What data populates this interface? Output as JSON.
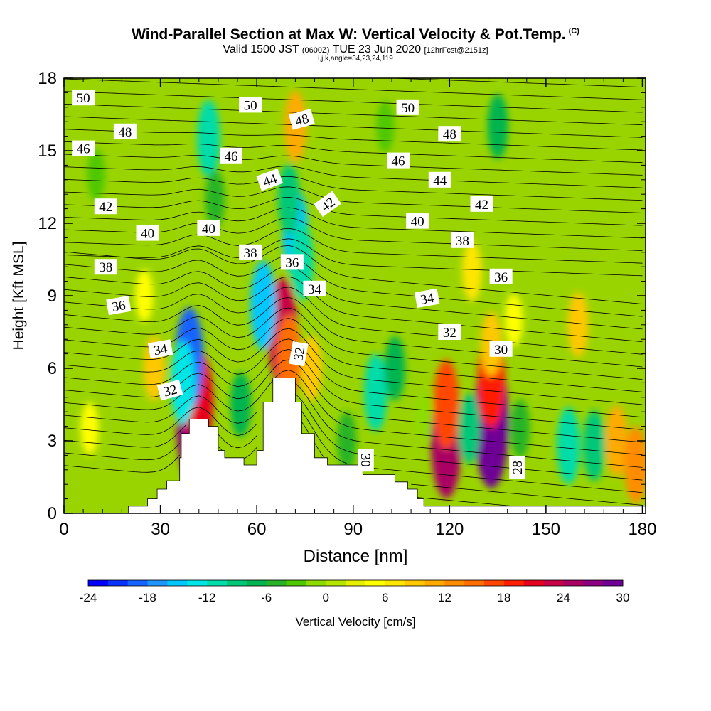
{
  "title": {
    "main": "Wind-Parallel Section at Max W: Vertical Velocity & Pot.Temp.",
    "copyright": "(C)",
    "valid_prefix": "Valid 1500 JST",
    "valid_utc": "(0600Z)",
    "valid_date": "TUE 23 Jun 2020",
    "forecast": "[12hrFcst@2151z]",
    "indices": "i,j,k,angle=34,23,24,119"
  },
  "chart_data": {
    "type": "heatmap",
    "xlabel": "Distance [nm]",
    "ylabel": "Height [Kft MSL]",
    "xlim": [
      0,
      181
    ],
    "ylim": [
      0,
      18
    ],
    "x_ticks": [
      "0",
      "30",
      "60",
      "90",
      "120",
      "150",
      "180"
    ],
    "y_ticks": [
      "0",
      "3",
      "6",
      "9",
      "12",
      "15",
      "18"
    ],
    "colorbar": {
      "label": "Vertical Velocity [cm/s]",
      "min": -24,
      "max": 30,
      "step": 2,
      "tick_labels": [
        "-24",
        "-18",
        "-12",
        "-6",
        "0",
        "6",
        "12",
        "18",
        "24",
        "30"
      ],
      "colors": [
        "#0000ff",
        "#0a32ff",
        "#1464ff",
        "#1e96ff",
        "#00c8ff",
        "#00e6e6",
        "#00dcaa",
        "#00c878",
        "#00b450",
        "#28b428",
        "#50c800",
        "#8cdc00",
        "#b4e600",
        "#e6f000",
        "#ffff00",
        "#ffe600",
        "#ffc800",
        "#ffaa00",
        "#ff8c00",
        "#ff6e00",
        "#ff4600",
        "#ff1e00",
        "#e6001e",
        "#c80046",
        "#aa0064",
        "#8c0082",
        "#6e0096"
      ]
    },
    "vertical_velocity_cells": [
      {
        "x": 40,
        "y": 3.8,
        "value": 26
      },
      {
        "x": 42,
        "y": 4.6,
        "value": 20
      },
      {
        "x": 39,
        "y": 6.4,
        "value": -20
      },
      {
        "x": 37,
        "y": 5.4,
        "value": -14
      },
      {
        "x": 68,
        "y": 7.5,
        "value": 22
      },
      {
        "x": 70,
        "y": 6.5,
        "value": 14
      },
      {
        "x": 62,
        "y": 8.6,
        "value": -16
      },
      {
        "x": 72,
        "y": 11.6,
        "value": -16
      },
      {
        "x": 74,
        "y": 10.4,
        "value": -12
      },
      {
        "x": 70,
        "y": 13.0,
        "value": -10
      },
      {
        "x": 72,
        "y": 16.0,
        "value": 10
      },
      {
        "x": 45,
        "y": 15.5,
        "value": -12
      },
      {
        "x": 47,
        "y": 13.0,
        "value": -6
      },
      {
        "x": 77,
        "y": 6.0,
        "value": 8
      },
      {
        "x": 97,
        "y": 5.0,
        "value": -12
      },
      {
        "x": 103,
        "y": 6.0,
        "value": -8
      },
      {
        "x": 119,
        "y": 3.0,
        "value": 24
      },
      {
        "x": 119,
        "y": 4.5,
        "value": 16
      },
      {
        "x": 133,
        "y": 3.8,
        "value": 30
      },
      {
        "x": 133,
        "y": 5.5,
        "value": 18
      },
      {
        "x": 126,
        "y": 3.5,
        "value": -10
      },
      {
        "x": 142,
        "y": 3.5,
        "value": -6
      },
      {
        "x": 157,
        "y": 2.8,
        "value": -12
      },
      {
        "x": 165,
        "y": 2.8,
        "value": -10
      },
      {
        "x": 172,
        "y": 3.0,
        "value": 10
      },
      {
        "x": 178,
        "y": 2.0,
        "value": 12
      },
      {
        "x": 160,
        "y": 7.8,
        "value": 8
      },
      {
        "x": 133,
        "y": 7.0,
        "value": 8
      },
      {
        "x": 28,
        "y": 6.0,
        "value": 8
      },
      {
        "x": 25,
        "y": 9.0,
        "value": 4
      },
      {
        "x": 8,
        "y": 3.5,
        "value": 4
      },
      {
        "x": 55,
        "y": 4.5,
        "value": -8
      },
      {
        "x": 88,
        "y": 3.0,
        "value": -6
      },
      {
        "x": 112,
        "y": 4.0,
        "value": -2
      },
      {
        "x": 127,
        "y": 10.0,
        "value": 6
      },
      {
        "x": 140,
        "y": 8.0,
        "value": 4
      },
      {
        "x": 100,
        "y": 16.0,
        "value": -4
      },
      {
        "x": 135,
        "y": 16.0,
        "value": -8
      },
      {
        "x": 10,
        "y": 14.0,
        "value": -4
      }
    ],
    "terrain_profile": {
      "x": [
        0,
        19,
        20,
        26,
        29,
        32,
        33,
        36,
        36.5,
        39,
        42,
        45,
        48,
        50,
        53,
        56,
        58,
        60,
        62,
        64,
        65,
        67,
        70,
        72,
        74,
        76,
        78,
        80,
        82,
        84,
        87,
        90,
        93,
        94,
        96,
        100,
        103,
        105,
        107,
        110,
        112,
        115,
        119,
        120,
        125,
        150,
        181
      ],
      "y": [
        0,
        0,
        0.3,
        0.6,
        1.0,
        1.35,
        1.35,
        2.3,
        3.3,
        3.9,
        3.9,
        3.6,
        2.6,
        2.3,
        2.3,
        2.0,
        2.0,
        2.6,
        4.6,
        4.6,
        5.6,
        5.6,
        5.6,
        4.6,
        3.3,
        3.3,
        2.3,
        2.3,
        2.0,
        2.0,
        2.0,
        2.0,
        1.6,
        1.6,
        1.6,
        1.6,
        1.3,
        1.3,
        1.0,
        0.6,
        0.3,
        0.3,
        0.3,
        0.3,
        0.3,
        0.3,
        0.3
      ]
    },
    "potential_temperature_labels": [
      {
        "text": "50",
        "x": 6,
        "y": 17.2,
        "angle": 0
      },
      {
        "text": "48",
        "x": 19,
        "y": 15.8,
        "angle": 0
      },
      {
        "text": "46",
        "x": 6,
        "y": 15.1,
        "angle": 0
      },
      {
        "text": "42",
        "x": 13,
        "y": 12.7,
        "angle": 0
      },
      {
        "text": "40",
        "x": 26,
        "y": 11.6,
        "angle": 0
      },
      {
        "text": "38",
        "x": 13,
        "y": 10.2,
        "angle": 0
      },
      {
        "text": "36",
        "x": 17,
        "y": 8.6,
        "angle": -10
      },
      {
        "text": "34",
        "x": 30,
        "y": 6.8,
        "angle": -10
      },
      {
        "text": "32",
        "x": 33,
        "y": 5.1,
        "angle": -15
      },
      {
        "text": "50",
        "x": 58,
        "y": 16.9,
        "angle": 0
      },
      {
        "text": "46",
        "x": 52,
        "y": 14.8,
        "angle": 0
      },
      {
        "text": "40",
        "x": 45,
        "y": 11.8,
        "angle": 0
      },
      {
        "text": "44",
        "x": 64,
        "y": 13.8,
        "angle": -20
      },
      {
        "text": "48",
        "x": 74,
        "y": 16.3,
        "angle": -15
      },
      {
        "text": "42",
        "x": 82,
        "y": 12.8,
        "angle": -35
      },
      {
        "text": "38",
        "x": 58,
        "y": 10.8,
        "angle": 0
      },
      {
        "text": "36",
        "x": 71,
        "y": 10.4,
        "angle": 0
      },
      {
        "text": "34",
        "x": 78,
        "y": 9.3,
        "angle": 0
      },
      {
        "text": "32",
        "x": 73,
        "y": 6.6,
        "angle": -80
      },
      {
        "text": "50",
        "x": 107,
        "y": 16.8,
        "angle": 0
      },
      {
        "text": "48",
        "x": 120,
        "y": 15.7,
        "angle": 0
      },
      {
        "text": "46",
        "x": 104,
        "y": 14.6,
        "angle": 0
      },
      {
        "text": "44",
        "x": 117,
        "y": 13.8,
        "angle": 0
      },
      {
        "text": "42",
        "x": 130,
        "y": 12.8,
        "angle": 0
      },
      {
        "text": "40",
        "x": 110,
        "y": 12.1,
        "angle": 0
      },
      {
        "text": "38",
        "x": 124,
        "y": 11.3,
        "angle": 0
      },
      {
        "text": "36",
        "x": 136,
        "y": 9.8,
        "angle": 0
      },
      {
        "text": "34",
        "x": 113,
        "y": 8.9,
        "angle": -10
      },
      {
        "text": "32",
        "x": 120,
        "y": 7.5,
        "angle": 0
      },
      {
        "text": "30",
        "x": 136,
        "y": 6.8,
        "angle": 0
      },
      {
        "text": "30",
        "x": 94,
        "y": 2.2,
        "angle": 90
      },
      {
        "text": "28",
        "x": 141,
        "y": 1.9,
        "angle": -90
      }
    ]
  }
}
